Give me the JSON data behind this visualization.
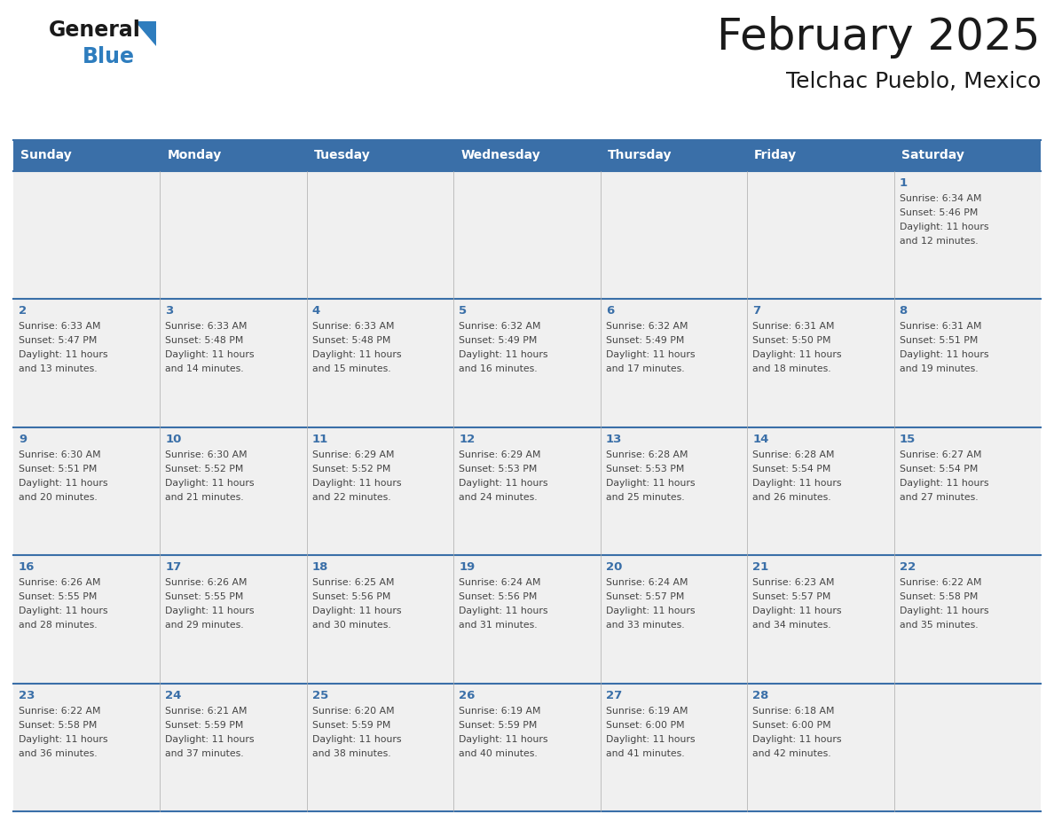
{
  "title": "February 2025",
  "subtitle": "Telchac Pueblo, Mexico",
  "days_of_week": [
    "Sunday",
    "Monday",
    "Tuesday",
    "Wednesday",
    "Thursday",
    "Friday",
    "Saturday"
  ],
  "header_bg_color": "#3a6fa8",
  "header_text_color": "#ffffff",
  "cell_bg_color": "#f0f0f0",
  "border_color": "#3a6fa8",
  "sep_color": "#3a6fa8",
  "day_num_color": "#3a6fa8",
  "text_color": "#444444",
  "title_color": "#1a1a1a",
  "subtitle_color": "#1a1a1a",
  "logo_general_color": "#1a1a1a",
  "logo_blue_color": "#2e7dbe",
  "logo_triangle_color": "#2e7dbe",
  "weeks": [
    [
      {
        "day": null,
        "info": null
      },
      {
        "day": null,
        "info": null
      },
      {
        "day": null,
        "info": null
      },
      {
        "day": null,
        "info": null
      },
      {
        "day": null,
        "info": null
      },
      {
        "day": null,
        "info": null
      },
      {
        "day": 1,
        "info": "Sunrise: 6:34 AM\nSunset: 5:46 PM\nDaylight: 11 hours\nand 12 minutes."
      }
    ],
    [
      {
        "day": 2,
        "info": "Sunrise: 6:33 AM\nSunset: 5:47 PM\nDaylight: 11 hours\nand 13 minutes."
      },
      {
        "day": 3,
        "info": "Sunrise: 6:33 AM\nSunset: 5:48 PM\nDaylight: 11 hours\nand 14 minutes."
      },
      {
        "day": 4,
        "info": "Sunrise: 6:33 AM\nSunset: 5:48 PM\nDaylight: 11 hours\nand 15 minutes."
      },
      {
        "day": 5,
        "info": "Sunrise: 6:32 AM\nSunset: 5:49 PM\nDaylight: 11 hours\nand 16 minutes."
      },
      {
        "day": 6,
        "info": "Sunrise: 6:32 AM\nSunset: 5:49 PM\nDaylight: 11 hours\nand 17 minutes."
      },
      {
        "day": 7,
        "info": "Sunrise: 6:31 AM\nSunset: 5:50 PM\nDaylight: 11 hours\nand 18 minutes."
      },
      {
        "day": 8,
        "info": "Sunrise: 6:31 AM\nSunset: 5:51 PM\nDaylight: 11 hours\nand 19 minutes."
      }
    ],
    [
      {
        "day": 9,
        "info": "Sunrise: 6:30 AM\nSunset: 5:51 PM\nDaylight: 11 hours\nand 20 minutes."
      },
      {
        "day": 10,
        "info": "Sunrise: 6:30 AM\nSunset: 5:52 PM\nDaylight: 11 hours\nand 21 minutes."
      },
      {
        "day": 11,
        "info": "Sunrise: 6:29 AM\nSunset: 5:52 PM\nDaylight: 11 hours\nand 22 minutes."
      },
      {
        "day": 12,
        "info": "Sunrise: 6:29 AM\nSunset: 5:53 PM\nDaylight: 11 hours\nand 24 minutes."
      },
      {
        "day": 13,
        "info": "Sunrise: 6:28 AM\nSunset: 5:53 PM\nDaylight: 11 hours\nand 25 minutes."
      },
      {
        "day": 14,
        "info": "Sunrise: 6:28 AM\nSunset: 5:54 PM\nDaylight: 11 hours\nand 26 minutes."
      },
      {
        "day": 15,
        "info": "Sunrise: 6:27 AM\nSunset: 5:54 PM\nDaylight: 11 hours\nand 27 minutes."
      }
    ],
    [
      {
        "day": 16,
        "info": "Sunrise: 6:26 AM\nSunset: 5:55 PM\nDaylight: 11 hours\nand 28 minutes."
      },
      {
        "day": 17,
        "info": "Sunrise: 6:26 AM\nSunset: 5:55 PM\nDaylight: 11 hours\nand 29 minutes."
      },
      {
        "day": 18,
        "info": "Sunrise: 6:25 AM\nSunset: 5:56 PM\nDaylight: 11 hours\nand 30 minutes."
      },
      {
        "day": 19,
        "info": "Sunrise: 6:24 AM\nSunset: 5:56 PM\nDaylight: 11 hours\nand 31 minutes."
      },
      {
        "day": 20,
        "info": "Sunrise: 6:24 AM\nSunset: 5:57 PM\nDaylight: 11 hours\nand 33 minutes."
      },
      {
        "day": 21,
        "info": "Sunrise: 6:23 AM\nSunset: 5:57 PM\nDaylight: 11 hours\nand 34 minutes."
      },
      {
        "day": 22,
        "info": "Sunrise: 6:22 AM\nSunset: 5:58 PM\nDaylight: 11 hours\nand 35 minutes."
      }
    ],
    [
      {
        "day": 23,
        "info": "Sunrise: 6:22 AM\nSunset: 5:58 PM\nDaylight: 11 hours\nand 36 minutes."
      },
      {
        "day": 24,
        "info": "Sunrise: 6:21 AM\nSunset: 5:59 PM\nDaylight: 11 hours\nand 37 minutes."
      },
      {
        "day": 25,
        "info": "Sunrise: 6:20 AM\nSunset: 5:59 PM\nDaylight: 11 hours\nand 38 minutes."
      },
      {
        "day": 26,
        "info": "Sunrise: 6:19 AM\nSunset: 5:59 PM\nDaylight: 11 hours\nand 40 minutes."
      },
      {
        "day": 27,
        "info": "Sunrise: 6:19 AM\nSunset: 6:00 PM\nDaylight: 11 hours\nand 41 minutes."
      },
      {
        "day": 28,
        "info": "Sunrise: 6:18 AM\nSunset: 6:00 PM\nDaylight: 11 hours\nand 42 minutes."
      },
      {
        "day": null,
        "info": null
      }
    ]
  ]
}
